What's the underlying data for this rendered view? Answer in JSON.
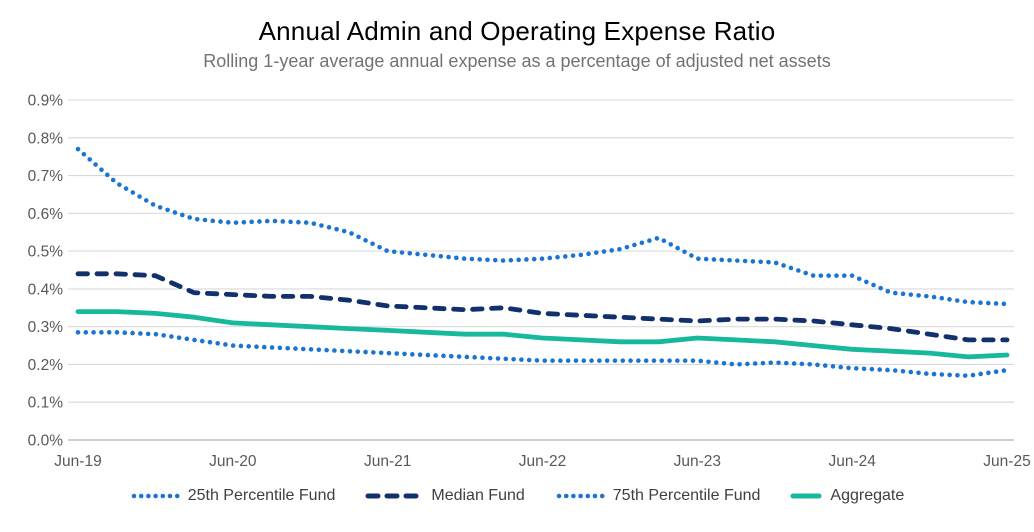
{
  "chart_data": {
    "type": "line",
    "title": "Annual Admin and Operating Expense Ratio",
    "subtitle": "Rolling 1-year average annual expense as a percentage of adjusted net assets",
    "x": [
      "Jun-19",
      "Sep-19",
      "Dec-19",
      "Mar-20",
      "Jun-20",
      "Sep-20",
      "Dec-20",
      "Mar-21",
      "Jun-21",
      "Sep-21",
      "Dec-21",
      "Mar-22",
      "Jun-22",
      "Sep-22",
      "Dec-22",
      "Mar-23",
      "Jun-23",
      "Sep-23",
      "Dec-23",
      "Mar-24",
      "Jun-24",
      "Sep-24",
      "Dec-24",
      "Mar-25",
      "Jun-25"
    ],
    "x_axis": {
      "shown_tick_labels": [
        "Jun-19",
        "Jun-20",
        "Jun-21",
        "Jun-22",
        "Jun-23",
        "Jun-24",
        "Jun-25"
      ],
      "shown_tick_indices": [
        0,
        4,
        8,
        12,
        16,
        20,
        24
      ]
    },
    "y_axis": {
      "min": 0.0,
      "max": 0.9,
      "tick_step": 0.1,
      "unit": "%",
      "tick_labels": [
        "0.0%",
        "0.1%",
        "0.2%",
        "0.3%",
        "0.4%",
        "0.5%",
        "0.6%",
        "0.7%",
        "0.8%",
        "0.9%"
      ]
    },
    "grid": "horizontal-only",
    "legend_position": "bottom",
    "series": [
      {
        "name": "25th Percentile Fund",
        "style": "dotted",
        "color": "#1a75d2",
        "values": [
          0.285,
          0.285,
          0.28,
          0.265,
          0.25,
          0.245,
          0.24,
          0.235,
          0.23,
          0.225,
          0.22,
          0.215,
          0.21,
          0.21,
          0.21,
          0.21,
          0.21,
          0.2,
          0.205,
          0.2,
          0.19,
          0.185,
          0.175,
          0.17,
          0.185
        ]
      },
      {
        "name": "Median Fund",
        "style": "dashed",
        "color": "#12306b",
        "values": [
          0.44,
          0.44,
          0.435,
          0.39,
          0.385,
          0.38,
          0.38,
          0.37,
          0.355,
          0.35,
          0.345,
          0.35,
          0.335,
          0.33,
          0.325,
          0.32,
          0.315,
          0.32,
          0.32,
          0.315,
          0.305,
          0.295,
          0.28,
          0.265,
          0.265
        ]
      },
      {
        "name": "75th Percentile Fund",
        "style": "dotted",
        "color": "#1a75d2",
        "values": [
          0.77,
          0.68,
          0.62,
          0.585,
          0.575,
          0.58,
          0.575,
          0.55,
          0.5,
          0.49,
          0.48,
          0.475,
          0.48,
          0.49,
          0.505,
          0.535,
          0.48,
          0.475,
          0.47,
          0.435,
          0.435,
          0.39,
          0.38,
          0.365,
          0.36
        ]
      },
      {
        "name": "Aggregate",
        "style": "solid",
        "color": "#17b89c",
        "values": [
          0.34,
          0.34,
          0.335,
          0.325,
          0.31,
          0.305,
          0.3,
          0.295,
          0.29,
          0.285,
          0.28,
          0.28,
          0.27,
          0.265,
          0.26,
          0.26,
          0.27,
          0.265,
          0.26,
          0.25,
          0.24,
          0.235,
          0.23,
          0.22,
          0.225
        ]
      }
    ],
    "colors": {
      "gridline": "#d9d9d9",
      "axis_line": "#bfbfbf",
      "tick_label": "#595959",
      "legend_text": "#404040",
      "subtitle_text": "#767171",
      "title_text": "#000000",
      "background": "#ffffff"
    }
  }
}
